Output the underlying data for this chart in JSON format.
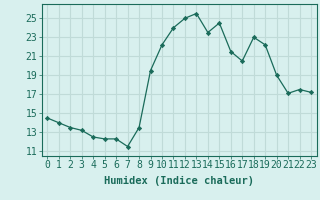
{
  "x": [
    0,
    1,
    2,
    3,
    4,
    5,
    6,
    7,
    8,
    9,
    10,
    11,
    12,
    13,
    14,
    15,
    16,
    17,
    18,
    19,
    20,
    21,
    22,
    23
  ],
  "y": [
    14.5,
    14.0,
    13.5,
    13.2,
    12.5,
    12.3,
    12.3,
    11.5,
    13.5,
    19.5,
    22.2,
    24.0,
    25.0,
    25.5,
    23.5,
    24.5,
    21.5,
    20.5,
    23.0,
    22.2,
    19.0,
    17.1,
    17.5,
    17.2
  ],
  "line_color": "#1a6b5a",
  "marker": "D",
  "marker_size": 2.2,
  "bg_color": "#d8f0ee",
  "grid_color": "#c0dbd8",
  "xlabel": "Humidex (Indice chaleur)",
  "ylabel_ticks": [
    11,
    13,
    15,
    17,
    19,
    21,
    23,
    25
  ],
  "xlim": [
    -0.5,
    23.5
  ],
  "ylim": [
    10.5,
    26.5
  ],
  "xlabel_fontsize": 7.5,
  "tick_fontsize": 7
}
